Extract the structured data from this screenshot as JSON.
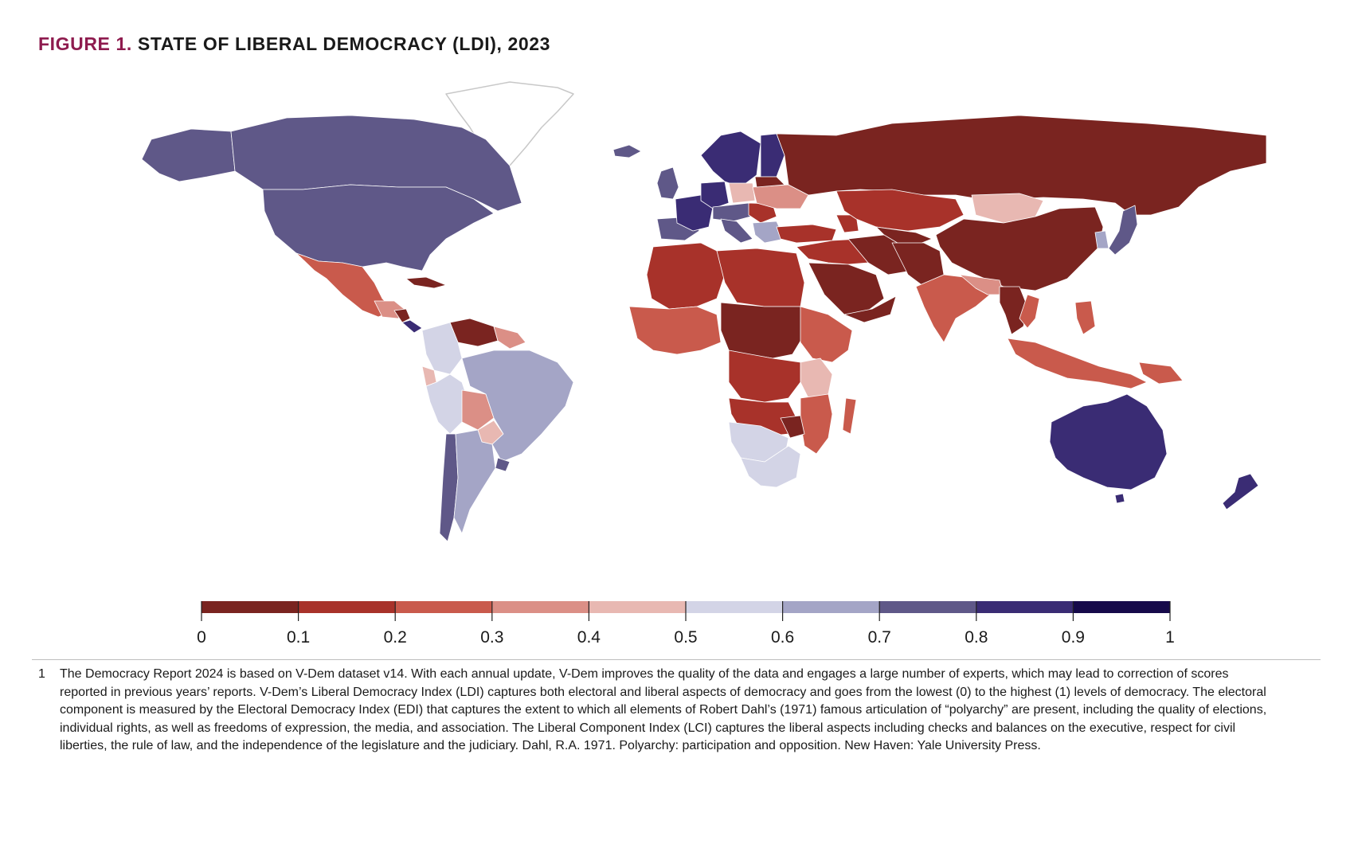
{
  "figure": {
    "label": "FIGURE 1.",
    "title": "STATE OF LIBERAL DEMOCRACY (LDI), 2023"
  },
  "map": {
    "colors": {
      "ocean": "#ffffff",
      "border": "#ffffff",
      "greenland_outline": "#c8c8c8",
      "no_data": "#ffffff"
    },
    "scale_colors": [
      "#7a2420",
      "#a8322a",
      "#c95a4c",
      "#db8f86",
      "#e8b8b2",
      "#d3d4e6",
      "#a4a5c6",
      "#5f5888",
      "#3a2c74",
      "#160a4a"
    ]
  },
  "legend": {
    "ticks": [
      "0",
      "0.1",
      "0.2",
      "0.3",
      "0.4",
      "0.5",
      "0.6",
      "0.7",
      "0.8",
      "0.9",
      "1"
    ]
  },
  "footnote": {
    "number": "1",
    "text": "The Democracy Report 2024 is based on V-Dem dataset v14. With each annual update, V-Dem improves the quality of the data and engages a large number of experts, which may lead to correction of scores reported in previous years’ reports. V-Dem’s Liberal Democracy Index (LDI) captures both electoral and liberal aspects of democracy and goes from the lowest (0) to the highest (1) levels of democracy. The electoral component is measured by the Electoral Democracy Index (EDI) that captures the extent to which all elements of Robert Dahl’s (1971) famous articulation of “polyarchy” are present, including the quality of elections, individual rights, as well as freedoms of expression, the media, and association. The Liberal Component Index (LCI) captures the liberal aspects including checks and balances on the executive, respect for civil liberties, the rule of law, and the independence of the legislature and the judiciary. Dahl, R.A. 1971. Polyarchy: participation and opposition. New Haven: Yale University Press."
  }
}
